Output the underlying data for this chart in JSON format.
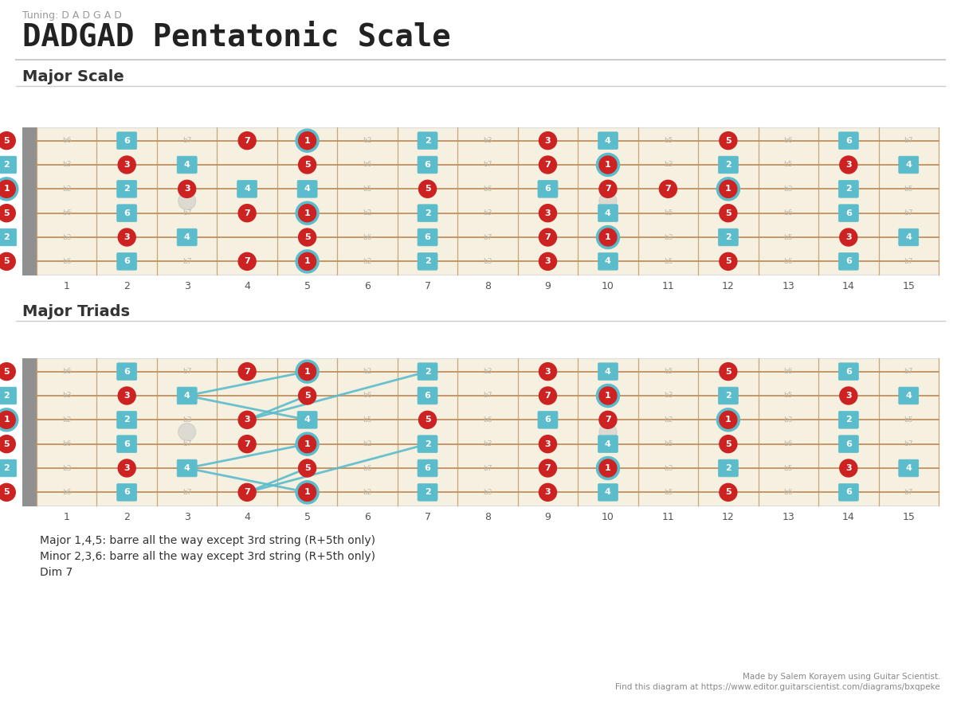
{
  "title": "DADGAD Pentatonic Scale",
  "tuning_label": "Tuning: D A D G A D",
  "section1_title": "Major Scale",
  "section2_title": "Major Triads",
  "footer_text1": "Made by Salem Korayem using Guitar Scientist.",
  "footer_text2": "Find this diagram at https://www.editor.guitarscientist.com/diagrams/bxqpeke",
  "capo_notes_text": [
    "Major 1,4,5: barre all the way except 3rd string (R+5th only)",
    "Minor 2,3,6: barre all the way except 3rd string (R+5th only)",
    "Dim 7"
  ],
  "major_scale_notes": [
    {
      "fret": 0,
      "string": 0,
      "label": "5",
      "type": "red"
    },
    {
      "fret": 0,
      "string": 1,
      "label": "2",
      "type": "teal"
    },
    {
      "fret": 0,
      "string": 2,
      "label": "1",
      "type": "root"
    },
    {
      "fret": 0,
      "string": 3,
      "label": "5",
      "type": "red"
    },
    {
      "fret": 0,
      "string": 4,
      "label": "2",
      "type": "teal"
    },
    {
      "fret": 0,
      "string": 5,
      "label": "5",
      "type": "red"
    },
    {
      "fret": 2,
      "string": 0,
      "label": "6",
      "type": "teal"
    },
    {
      "fret": 2,
      "string": 1,
      "label": "3",
      "type": "red"
    },
    {
      "fret": 2,
      "string": 2,
      "label": "2",
      "type": "teal"
    },
    {
      "fret": 2,
      "string": 3,
      "label": "6",
      "type": "teal"
    },
    {
      "fret": 2,
      "string": 4,
      "label": "3",
      "type": "red"
    },
    {
      "fret": 2,
      "string": 5,
      "label": "6",
      "type": "teal"
    },
    {
      "fret": 3,
      "string": 1,
      "label": "4",
      "type": "teal"
    },
    {
      "fret": 3,
      "string": 2,
      "label": "3",
      "type": "red"
    },
    {
      "fret": 3,
      "string": 4,
      "label": "4",
      "type": "teal"
    },
    {
      "fret": 4,
      "string": 0,
      "label": "7",
      "type": "red"
    },
    {
      "fret": 4,
      "string": 2,
      "label": "4",
      "type": "teal"
    },
    {
      "fret": 4,
      "string": 3,
      "label": "7",
      "type": "red"
    },
    {
      "fret": 4,
      "string": 5,
      "label": "7",
      "type": "red"
    },
    {
      "fret": 5,
      "string": 0,
      "label": "1",
      "type": "root"
    },
    {
      "fret": 5,
      "string": 1,
      "label": "5",
      "type": "red"
    },
    {
      "fret": 5,
      "string": 2,
      "label": "4",
      "type": "teal"
    },
    {
      "fret": 5,
      "string": 3,
      "label": "1",
      "type": "root"
    },
    {
      "fret": 5,
      "string": 4,
      "label": "5",
      "type": "red"
    },
    {
      "fret": 5,
      "string": 5,
      "label": "1",
      "type": "root"
    },
    {
      "fret": 7,
      "string": 0,
      "label": "2",
      "type": "teal"
    },
    {
      "fret": 7,
      "string": 1,
      "label": "6",
      "type": "teal"
    },
    {
      "fret": 7,
      "string": 2,
      "label": "5",
      "type": "red"
    },
    {
      "fret": 7,
      "string": 3,
      "label": "2",
      "type": "teal"
    },
    {
      "fret": 7,
      "string": 4,
      "label": "6",
      "type": "teal"
    },
    {
      "fret": 7,
      "string": 5,
      "label": "2",
      "type": "teal"
    },
    {
      "fret": 9,
      "string": 0,
      "label": "3",
      "type": "red"
    },
    {
      "fret": 9,
      "string": 1,
      "label": "7",
      "type": "red"
    },
    {
      "fret": 9,
      "string": 2,
      "label": "6",
      "type": "teal"
    },
    {
      "fret": 9,
      "string": 3,
      "label": "3",
      "type": "red"
    },
    {
      "fret": 9,
      "string": 4,
      "label": "7",
      "type": "red"
    },
    {
      "fret": 9,
      "string": 5,
      "label": "3",
      "type": "red"
    },
    {
      "fret": 10,
      "string": 0,
      "label": "4",
      "type": "teal"
    },
    {
      "fret": 10,
      "string": 1,
      "label": "1",
      "type": "root"
    },
    {
      "fret": 10,
      "string": 2,
      "label": "7",
      "type": "red"
    },
    {
      "fret": 10,
      "string": 3,
      "label": "4",
      "type": "teal"
    },
    {
      "fret": 10,
      "string": 4,
      "label": "1",
      "type": "root"
    },
    {
      "fret": 10,
      "string": 5,
      "label": "4",
      "type": "teal"
    },
    {
      "fret": 11,
      "string": 2,
      "label": "7",
      "type": "red"
    },
    {
      "fret": 12,
      "string": 0,
      "label": "5",
      "type": "red"
    },
    {
      "fret": 12,
      "string": 1,
      "label": "2",
      "type": "teal"
    },
    {
      "fret": 12,
      "string": 2,
      "label": "1",
      "type": "root"
    },
    {
      "fret": 12,
      "string": 3,
      "label": "5",
      "type": "red"
    },
    {
      "fret": 12,
      "string": 4,
      "label": "2",
      "type": "teal"
    },
    {
      "fret": 12,
      "string": 5,
      "label": "5",
      "type": "red"
    },
    {
      "fret": 14,
      "string": 0,
      "label": "6",
      "type": "teal"
    },
    {
      "fret": 14,
      "string": 1,
      "label": "3",
      "type": "red"
    },
    {
      "fret": 14,
      "string": 2,
      "label": "2",
      "type": "teal"
    },
    {
      "fret": 14,
      "string": 3,
      "label": "6",
      "type": "teal"
    },
    {
      "fret": 14,
      "string": 4,
      "label": "3",
      "type": "red"
    },
    {
      "fret": 14,
      "string": 5,
      "label": "6",
      "type": "teal"
    },
    {
      "fret": 15,
      "string": 1,
      "label": "4",
      "type": "teal"
    },
    {
      "fret": 15,
      "string": 4,
      "label": "4",
      "type": "teal"
    }
  ],
  "major_triads_notes": [
    {
      "fret": 0,
      "string": 0,
      "label": "5",
      "type": "red"
    },
    {
      "fret": 0,
      "string": 1,
      "label": "2",
      "type": "teal"
    },
    {
      "fret": 0,
      "string": 2,
      "label": "1",
      "type": "root"
    },
    {
      "fret": 0,
      "string": 3,
      "label": "5",
      "type": "red"
    },
    {
      "fret": 0,
      "string": 4,
      "label": "2",
      "type": "teal"
    },
    {
      "fret": 0,
      "string": 5,
      "label": "5",
      "type": "red"
    },
    {
      "fret": 2,
      "string": 0,
      "label": "6",
      "type": "teal"
    },
    {
      "fret": 2,
      "string": 1,
      "label": "3",
      "type": "red"
    },
    {
      "fret": 2,
      "string": 2,
      "label": "2",
      "type": "teal"
    },
    {
      "fret": 2,
      "string": 3,
      "label": "6",
      "type": "teal"
    },
    {
      "fret": 2,
      "string": 4,
      "label": "3",
      "type": "red"
    },
    {
      "fret": 2,
      "string": 5,
      "label": "6",
      "type": "teal"
    },
    {
      "fret": 3,
      "string": 1,
      "label": "4",
      "type": "teal"
    },
    {
      "fret": 3,
      "string": 4,
      "label": "4",
      "type": "teal"
    },
    {
      "fret": 4,
      "string": 0,
      "label": "7",
      "type": "red"
    },
    {
      "fret": 4,
      "string": 2,
      "label": "3",
      "type": "red"
    },
    {
      "fret": 4,
      "string": 3,
      "label": "7",
      "type": "red"
    },
    {
      "fret": 4,
      "string": 5,
      "label": "7",
      "type": "red"
    },
    {
      "fret": 5,
      "string": 0,
      "label": "1",
      "type": "root"
    },
    {
      "fret": 5,
      "string": 1,
      "label": "5",
      "type": "red"
    },
    {
      "fret": 5,
      "string": 2,
      "label": "4",
      "type": "teal"
    },
    {
      "fret": 5,
      "string": 3,
      "label": "1",
      "type": "root"
    },
    {
      "fret": 5,
      "string": 4,
      "label": "5",
      "type": "red"
    },
    {
      "fret": 5,
      "string": 5,
      "label": "1",
      "type": "root"
    },
    {
      "fret": 7,
      "string": 0,
      "label": "2",
      "type": "teal"
    },
    {
      "fret": 7,
      "string": 1,
      "label": "6",
      "type": "teal"
    },
    {
      "fret": 7,
      "string": 2,
      "label": "5",
      "type": "red"
    },
    {
      "fret": 7,
      "string": 3,
      "label": "2",
      "type": "teal"
    },
    {
      "fret": 7,
      "string": 4,
      "label": "6",
      "type": "teal"
    },
    {
      "fret": 7,
      "string": 5,
      "label": "2",
      "type": "teal"
    },
    {
      "fret": 9,
      "string": 0,
      "label": "3",
      "type": "red"
    },
    {
      "fret": 9,
      "string": 1,
      "label": "7",
      "type": "red"
    },
    {
      "fret": 9,
      "string": 2,
      "label": "6",
      "type": "teal"
    },
    {
      "fret": 9,
      "string": 3,
      "label": "3",
      "type": "red"
    },
    {
      "fret": 9,
      "string": 4,
      "label": "7",
      "type": "red"
    },
    {
      "fret": 9,
      "string": 5,
      "label": "3",
      "type": "red"
    },
    {
      "fret": 10,
      "string": 0,
      "label": "4",
      "type": "teal"
    },
    {
      "fret": 10,
      "string": 1,
      "label": "1",
      "type": "root"
    },
    {
      "fret": 10,
      "string": 2,
      "label": "7",
      "type": "red"
    },
    {
      "fret": 10,
      "string": 3,
      "label": "4",
      "type": "teal"
    },
    {
      "fret": 10,
      "string": 4,
      "label": "1",
      "type": "root"
    },
    {
      "fret": 10,
      "string": 5,
      "label": "4",
      "type": "teal"
    },
    {
      "fret": 12,
      "string": 0,
      "label": "5",
      "type": "red"
    },
    {
      "fret": 12,
      "string": 1,
      "label": "2",
      "type": "teal"
    },
    {
      "fret": 12,
      "string": 2,
      "label": "1",
      "type": "root"
    },
    {
      "fret": 12,
      "string": 3,
      "label": "5",
      "type": "red"
    },
    {
      "fret": 12,
      "string": 4,
      "label": "2",
      "type": "teal"
    },
    {
      "fret": 12,
      "string": 5,
      "label": "5",
      "type": "red"
    },
    {
      "fret": 14,
      "string": 0,
      "label": "6",
      "type": "teal"
    },
    {
      "fret": 14,
      "string": 1,
      "label": "3",
      "type": "red"
    },
    {
      "fret": 14,
      "string": 2,
      "label": "2",
      "type": "teal"
    },
    {
      "fret": 14,
      "string": 3,
      "label": "6",
      "type": "teal"
    },
    {
      "fret": 14,
      "string": 4,
      "label": "3",
      "type": "red"
    },
    {
      "fret": 14,
      "string": 5,
      "label": "6",
      "type": "teal"
    },
    {
      "fret": 15,
      "string": 1,
      "label": "4",
      "type": "teal"
    },
    {
      "fret": 15,
      "string": 4,
      "label": "4",
      "type": "teal"
    }
  ],
  "triad_lines": [
    [
      3,
      1,
      5,
      0
    ],
    [
      3,
      1,
      5,
      2
    ],
    [
      3,
      4,
      5,
      3
    ],
    [
      3,
      4,
      5,
      5
    ],
    [
      4,
      2,
      5,
      1
    ],
    [
      4,
      5,
      5,
      4
    ],
    [
      4,
      2,
      7,
      0
    ],
    [
      4,
      5,
      7,
      3
    ]
  ],
  "faded_interval_labels": {
    "0": [
      [
        1,
        "b6"
      ],
      [
        3,
        "b7"
      ],
      [
        6,
        "b2"
      ],
      [
        8,
        "b3"
      ],
      [
        11,
        "b5"
      ],
      [
        13,
        "b6"
      ],
      [
        15,
        "b7"
      ]
    ],
    "1": [
      [
        1,
        "b3"
      ],
      [
        3,
        "b5"
      ],
      [
        6,
        "b6"
      ],
      [
        8,
        "b7"
      ],
      [
        11,
        "b3"
      ],
      [
        13,
        "b5"
      ],
      [
        15,
        "b6"
      ]
    ],
    "2": [
      [
        1,
        "b2"
      ],
      [
        3,
        "b3"
      ],
      [
        6,
        "b5"
      ],
      [
        8,
        "b6"
      ],
      [
        11,
        "b2"
      ],
      [
        13,
        "b3"
      ],
      [
        15,
        "b5"
      ]
    ],
    "3": [
      [
        1,
        "b6"
      ],
      [
        3,
        "b7"
      ],
      [
        6,
        "b2"
      ],
      [
        8,
        "b3"
      ],
      [
        11,
        "b5"
      ],
      [
        13,
        "b6"
      ],
      [
        15,
        "b7"
      ]
    ],
    "4": [
      [
        1,
        "b3"
      ],
      [
        3,
        "b5"
      ],
      [
        6,
        "b6"
      ],
      [
        8,
        "b7"
      ],
      [
        11,
        "b3"
      ],
      [
        13,
        "b5"
      ],
      [
        15,
        "b6"
      ]
    ],
    "5": [
      [
        1,
        "b6"
      ],
      [
        3,
        "b7"
      ],
      [
        6,
        "b2"
      ],
      [
        8,
        "b3"
      ],
      [
        11,
        "b5"
      ],
      [
        13,
        "b6"
      ],
      [
        15,
        "b7"
      ]
    ]
  },
  "ghost_dot_frets": [
    3,
    10
  ],
  "ghost_dot_string": 2,
  "num_frets": 15,
  "num_strings": 6
}
